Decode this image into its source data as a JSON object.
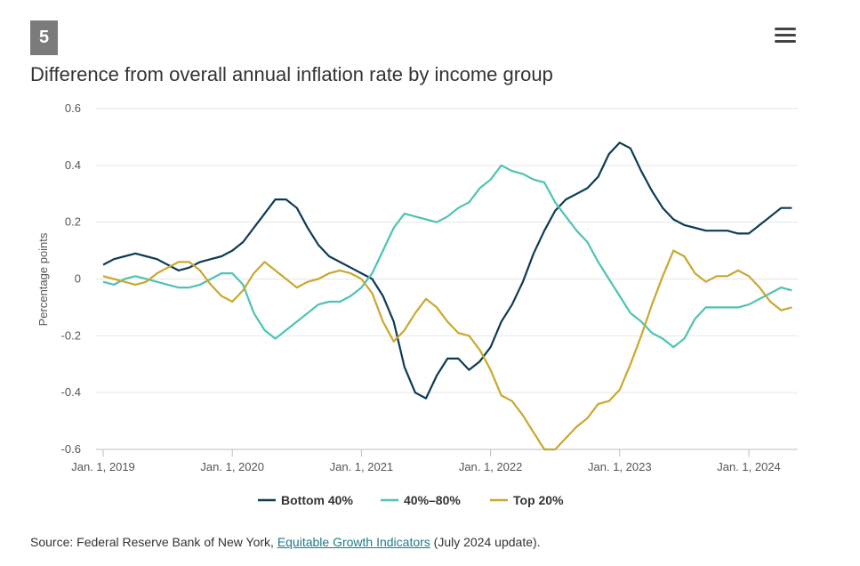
{
  "badge": "5",
  "title": "Difference from overall annual inflation rate by income group",
  "source": {
    "prefix": "Source: Federal Reserve Bank of New York, ",
    "link": "Equitable Growth Indicators",
    "suffix": " (July 2024 update)."
  },
  "menu_icon": "hamburger-menu-icon",
  "chart_data": {
    "type": "line",
    "title": "Difference from overall annual inflation rate by income group",
    "xlabel": "",
    "ylabel": "Percentage points",
    "ylim": [
      -0.6,
      0.6
    ],
    "yticks": [
      0.6,
      0.4,
      0.2,
      0,
      -0.2,
      -0.4,
      -0.6
    ],
    "xticks": [
      "Jan. 1, 2019",
      "Jan. 1, 2020",
      "Jan. 1, 2021",
      "Jan. 1, 2022",
      "Jan. 1, 2023",
      "Jan. 1, 2024"
    ],
    "x_start": "2019-01",
    "x_frequency": "monthly",
    "grid": true,
    "legend_position": "bottom",
    "series": [
      {
        "name": "Bottom 40%",
        "color": "#0d3b56",
        "values": [
          0.05,
          0.07,
          0.08,
          0.09,
          0.08,
          0.07,
          0.05,
          0.03,
          0.04,
          0.06,
          0.07,
          0.08,
          0.1,
          0.13,
          0.18,
          0.23,
          0.28,
          0.28,
          0.25,
          0.18,
          0.12,
          0.08,
          0.06,
          0.04,
          0.02,
          0.0,
          -0.06,
          -0.15,
          -0.31,
          -0.4,
          -0.42,
          -0.34,
          -0.28,
          -0.28,
          -0.32,
          -0.29,
          -0.24,
          -0.15,
          -0.09,
          -0.01,
          0.09,
          0.17,
          0.24,
          0.28,
          0.3,
          0.32,
          0.36,
          0.44,
          0.48,
          0.46,
          0.38,
          0.31,
          0.25,
          0.21,
          0.19,
          0.18,
          0.17,
          0.17,
          0.17,
          0.16,
          0.16,
          0.19,
          0.22,
          0.25,
          0.25
        ]
      },
      {
        "name": "40%–80%",
        "color": "#4ec3b5",
        "values": [
          -0.01,
          -0.02,
          0.0,
          0.01,
          0.0,
          -0.01,
          -0.02,
          -0.03,
          -0.03,
          -0.02,
          0.0,
          0.02,
          0.02,
          -0.02,
          -0.12,
          -0.18,
          -0.21,
          -0.18,
          -0.15,
          -0.12,
          -0.09,
          -0.08,
          -0.08,
          -0.06,
          -0.03,
          0.02,
          0.1,
          0.18,
          0.23,
          0.22,
          0.21,
          0.2,
          0.22,
          0.25,
          0.27,
          0.32,
          0.35,
          0.4,
          0.38,
          0.37,
          0.35,
          0.34,
          0.27,
          0.22,
          0.17,
          0.13,
          0.06,
          0.0,
          -0.06,
          -0.12,
          -0.15,
          -0.19,
          -0.21,
          -0.24,
          -0.21,
          -0.14,
          -0.1,
          -0.1,
          -0.1,
          -0.1,
          -0.09,
          -0.07,
          -0.05,
          -0.03,
          -0.04
        ]
      },
      {
        "name": "Top 20%",
        "color": "#c9a82c",
        "values": [
          0.01,
          0.0,
          -0.01,
          -0.02,
          -0.01,
          0.02,
          0.04,
          0.06,
          0.06,
          0.03,
          -0.02,
          -0.06,
          -0.08,
          -0.04,
          0.02,
          0.06,
          0.03,
          0.0,
          -0.03,
          -0.01,
          0.0,
          0.02,
          0.03,
          0.02,
          0.0,
          -0.05,
          -0.15,
          -0.22,
          -0.18,
          -0.12,
          -0.07,
          -0.1,
          -0.15,
          -0.19,
          -0.2,
          -0.25,
          -0.32,
          -0.41,
          -0.43,
          -0.48,
          -0.54,
          -0.6,
          -0.6,
          -0.56,
          -0.52,
          -0.49,
          -0.44,
          -0.43,
          -0.39,
          -0.3,
          -0.2,
          -0.09,
          0.01,
          0.1,
          0.08,
          0.02,
          -0.01,
          0.01,
          0.01,
          0.03,
          0.01,
          -0.03,
          -0.08,
          -0.11,
          -0.1
        ]
      }
    ]
  }
}
